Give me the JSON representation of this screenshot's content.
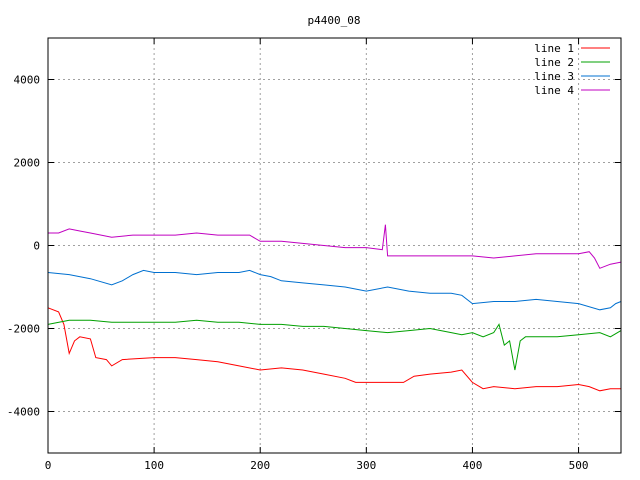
{
  "chart_data": {
    "type": "line",
    "title": "p4400_08",
    "xlabel": "",
    "ylabel": "",
    "xlim": [
      0,
      540
    ],
    "ylim": [
      -5000,
      5000
    ],
    "x_ticks": [
      0,
      100,
      200,
      300,
      400,
      500
    ],
    "y_ticks": [
      -4000,
      -2000,
      0,
      2000,
      4000
    ],
    "grid": true,
    "legend_position": "top-right",
    "series": [
      {
        "name": "line 1",
        "color": "#ff0000",
        "points": [
          [
            0,
            -1500
          ],
          [
            10,
            -1600
          ],
          [
            15,
            -1900
          ],
          [
            20,
            -2600
          ],
          [
            25,
            -2300
          ],
          [
            30,
            -2200
          ],
          [
            40,
            -2250
          ],
          [
            45,
            -2700
          ],
          [
            55,
            -2750
          ],
          [
            60,
            -2900
          ],
          [
            70,
            -2750
          ],
          [
            100,
            -2700
          ],
          [
            120,
            -2700
          ],
          [
            140,
            -2750
          ],
          [
            160,
            -2800
          ],
          [
            180,
            -2900
          ],
          [
            200,
            -3000
          ],
          [
            220,
            -2950
          ],
          [
            240,
            -3000
          ],
          [
            260,
            -3100
          ],
          [
            280,
            -3200
          ],
          [
            290,
            -3300
          ],
          [
            300,
            -3300
          ],
          [
            320,
            -3300
          ],
          [
            335,
            -3300
          ],
          [
            345,
            -3150
          ],
          [
            360,
            -3100
          ],
          [
            380,
            -3050
          ],
          [
            390,
            -3000
          ],
          [
            400,
            -3300
          ],
          [
            410,
            -3450
          ],
          [
            420,
            -3400
          ],
          [
            440,
            -3450
          ],
          [
            460,
            -3400
          ],
          [
            480,
            -3400
          ],
          [
            500,
            -3350
          ],
          [
            510,
            -3400
          ],
          [
            520,
            -3500
          ],
          [
            530,
            -3450
          ],
          [
            540,
            -3450
          ]
        ]
      },
      {
        "name": "line 2",
        "color": "#00a000",
        "points": [
          [
            0,
            -1900
          ],
          [
            20,
            -1800
          ],
          [
            40,
            -1800
          ],
          [
            60,
            -1850
          ],
          [
            80,
            -1850
          ],
          [
            100,
            -1850
          ],
          [
            120,
            -1850
          ],
          [
            140,
            -1800
          ],
          [
            160,
            -1850
          ],
          [
            180,
            -1850
          ],
          [
            200,
            -1900
          ],
          [
            220,
            -1900
          ],
          [
            240,
            -1950
          ],
          [
            260,
            -1950
          ],
          [
            280,
            -2000
          ],
          [
            300,
            -2050
          ],
          [
            320,
            -2100
          ],
          [
            340,
            -2050
          ],
          [
            360,
            -2000
          ],
          [
            380,
            -2100
          ],
          [
            390,
            -2150
          ],
          [
            400,
            -2100
          ],
          [
            410,
            -2200
          ],
          [
            420,
            -2100
          ],
          [
            425,
            -1900
          ],
          [
            430,
            -2400
          ],
          [
            435,
            -2300
          ],
          [
            440,
            -3000
          ],
          [
            445,
            -2300
          ],
          [
            450,
            -2200
          ],
          [
            460,
            -2200
          ],
          [
            480,
            -2200
          ],
          [
            500,
            -2150
          ],
          [
            520,
            -2100
          ],
          [
            530,
            -2200
          ],
          [
            540,
            -2050
          ]
        ]
      },
      {
        "name": "line 3",
        "color": "#0070d0",
        "points": [
          [
            0,
            -650
          ],
          [
            20,
            -700
          ],
          [
            40,
            -800
          ],
          [
            60,
            -950
          ],
          [
            70,
            -850
          ],
          [
            80,
            -700
          ],
          [
            90,
            -600
          ],
          [
            100,
            -650
          ],
          [
            120,
            -650
          ],
          [
            140,
            -700
          ],
          [
            160,
            -650
          ],
          [
            180,
            -650
          ],
          [
            190,
            -600
          ],
          [
            200,
            -700
          ],
          [
            210,
            -750
          ],
          [
            220,
            -850
          ],
          [
            240,
            -900
          ],
          [
            260,
            -950
          ],
          [
            280,
            -1000
          ],
          [
            300,
            -1100
          ],
          [
            320,
            -1000
          ],
          [
            340,
            -1100
          ],
          [
            360,
            -1150
          ],
          [
            380,
            -1150
          ],
          [
            390,
            -1200
          ],
          [
            400,
            -1400
          ],
          [
            420,
            -1350
          ],
          [
            440,
            -1350
          ],
          [
            460,
            -1300
          ],
          [
            480,
            -1350
          ],
          [
            500,
            -1400
          ],
          [
            520,
            -1550
          ],
          [
            530,
            -1500
          ],
          [
            535,
            -1400
          ],
          [
            540,
            -1350
          ]
        ]
      },
      {
        "name": "line 4",
        "color": "#c000c0",
        "points": [
          [
            0,
            300
          ],
          [
            10,
            300
          ],
          [
            20,
            400
          ],
          [
            30,
            350
          ],
          [
            40,
            300
          ],
          [
            60,
            200
          ],
          [
            80,
            250
          ],
          [
            100,
            250
          ],
          [
            120,
            250
          ],
          [
            140,
            300
          ],
          [
            160,
            250
          ],
          [
            180,
            250
          ],
          [
            190,
            250
          ],
          [
            200,
            100
          ],
          [
            220,
            100
          ],
          [
            240,
            50
          ],
          [
            260,
            0
          ],
          [
            280,
            -50
          ],
          [
            300,
            -50
          ],
          [
            315,
            -100
          ],
          [
            318,
            500
          ],
          [
            320,
            -250
          ],
          [
            340,
            -250
          ],
          [
            360,
            -250
          ],
          [
            380,
            -250
          ],
          [
            400,
            -250
          ],
          [
            420,
            -300
          ],
          [
            440,
            -250
          ],
          [
            460,
            -200
          ],
          [
            480,
            -200
          ],
          [
            500,
            -200
          ],
          [
            510,
            -150
          ],
          [
            515,
            -300
          ],
          [
            520,
            -550
          ],
          [
            530,
            -450
          ],
          [
            540,
            -400
          ]
        ]
      }
    ]
  }
}
